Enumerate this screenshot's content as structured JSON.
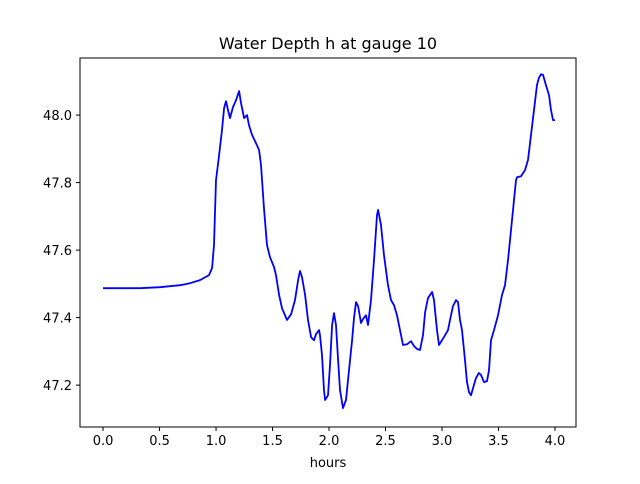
{
  "chart_data": {
    "type": "line",
    "title": "Water Depth h at gauge 10",
    "xlabel": "hours",
    "ylabel": "",
    "xlim": [
      -0.204,
      4.186
    ],
    "ylim": [
      47.076,
      48.169
    ],
    "xticks": [
      0.0,
      0.5,
      1.0,
      1.5,
      2.0,
      2.5,
      3.0,
      3.5,
      4.0
    ],
    "xtick_labels": [
      "0.0",
      "0.5",
      "1.0",
      "1.5",
      "2.0",
      "2.5",
      "3.0",
      "3.5",
      "4.0"
    ],
    "yticks": [
      47.2,
      47.4,
      47.6,
      47.8,
      48.0
    ],
    "ytick_labels": [
      "47.2",
      "47.4",
      "47.6",
      "47.8",
      "48.0"
    ],
    "grid": false,
    "series": [
      {
        "name": "h",
        "color": "#0000ff",
        "x": [
          0.0,
          0.327,
          0.504,
          0.681,
          0.77,
          0.858,
          0.938,
          0.965,
          0.982,
          1.0,
          1.027,
          1.053,
          1.071,
          1.088,
          1.106,
          1.124,
          1.15,
          1.177,
          1.204,
          1.221,
          1.248,
          1.274,
          1.292,
          1.319,
          1.354,
          1.381,
          1.398,
          1.425,
          1.451,
          1.478,
          1.513,
          1.531,
          1.558,
          1.584,
          1.628,
          1.664,
          1.699,
          1.726,
          1.743,
          1.761,
          1.788,
          1.814,
          1.841,
          1.867,
          1.885,
          1.912,
          1.92,
          1.938,
          1.956,
          1.965,
          1.991,
          2.009,
          2.027,
          2.044,
          2.062,
          2.08,
          2.097,
          2.124,
          2.15,
          2.177,
          2.204,
          2.221,
          2.239,
          2.257,
          2.283,
          2.301,
          2.327,
          2.345,
          2.372,
          2.398,
          2.425,
          2.434,
          2.46,
          2.487,
          2.522,
          2.549,
          2.575,
          2.602,
          2.628,
          2.655,
          2.69,
          2.726,
          2.752,
          2.779,
          2.805,
          2.832,
          2.85,
          2.876,
          2.912,
          2.929,
          2.956,
          2.973,
          3.0,
          3.027,
          3.053,
          3.071,
          3.097,
          3.124,
          3.142,
          3.159,
          3.177,
          3.204,
          3.221,
          3.239,
          3.257,
          3.274,
          3.301,
          3.327,
          3.345,
          3.372,
          3.398,
          3.416,
          3.434,
          3.46,
          3.496,
          3.531,
          3.558,
          3.584,
          3.611,
          3.637,
          3.655,
          3.664,
          3.699,
          3.735,
          3.761,
          3.788,
          3.814,
          3.841,
          3.858,
          3.876,
          3.894,
          3.92,
          3.947,
          3.965,
          3.982,
          4.0
        ],
        "y": [
          47.487,
          47.487,
          47.49,
          47.496,
          47.502,
          47.511,
          47.526,
          47.547,
          47.615,
          47.807,
          47.881,
          47.956,
          48.021,
          48.041,
          48.015,
          47.991,
          48.024,
          48.044,
          48.071,
          48.036,
          47.991,
          48.0,
          47.97,
          47.941,
          47.917,
          47.896,
          47.852,
          47.719,
          47.615,
          47.579,
          47.55,
          47.526,
          47.467,
          47.428,
          47.393,
          47.41,
          47.452,
          47.511,
          47.538,
          47.52,
          47.467,
          47.393,
          47.342,
          47.333,
          47.351,
          47.363,
          47.348,
          47.289,
          47.185,
          47.156,
          47.17,
          47.259,
          47.378,
          47.413,
          47.378,
          47.274,
          47.185,
          47.132,
          47.156,
          47.244,
          47.333,
          47.399,
          47.446,
          47.434,
          47.384,
          47.396,
          47.407,
          47.378,
          47.452,
          47.57,
          47.704,
          47.719,
          47.674,
          47.585,
          47.496,
          47.452,
          47.437,
          47.407,
          47.363,
          47.319,
          47.321,
          47.33,
          47.316,
          47.307,
          47.304,
          47.348,
          47.416,
          47.458,
          47.476,
          47.452,
          47.363,
          47.319,
          47.333,
          47.348,
          47.363,
          47.393,
          47.434,
          47.452,
          47.446,
          47.393,
          47.363,
          47.274,
          47.209,
          47.179,
          47.17,
          47.191,
          47.221,
          47.236,
          47.23,
          47.209,
          47.212,
          47.244,
          47.333,
          47.363,
          47.407,
          47.467,
          47.496,
          47.57,
          47.659,
          47.748,
          47.807,
          47.816,
          47.819,
          47.837,
          47.867,
          47.941,
          48.015,
          48.089,
          48.11,
          48.121,
          48.119,
          48.089,
          48.059,
          48.015,
          47.985,
          47.985
        ]
      }
    ]
  }
}
